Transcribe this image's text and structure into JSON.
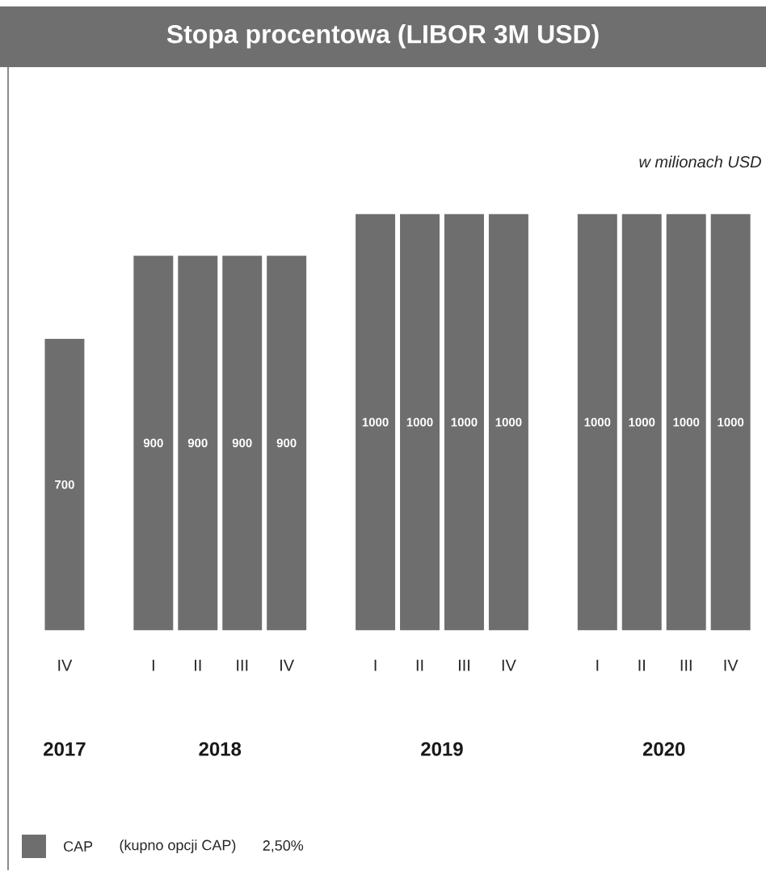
{
  "chart_data": {
    "type": "bar",
    "title": "Stopa procentowa (LIBOR 3M USD)",
    "subtitle": "w milionach USD",
    "categories": [
      "IV",
      null,
      "I",
      "II",
      "III",
      "IV",
      null,
      "I",
      "II",
      "III",
      "IV",
      null,
      "I",
      "II",
      "III",
      "IV"
    ],
    "series": [
      {
        "name": "CAP",
        "color": "#6e6e6e",
        "values": [
          700,
          null,
          900,
          900,
          900,
          900,
          null,
          1000,
          1000,
          1000,
          1000,
          null,
          1000,
          1000,
          1000,
          1000
        ]
      }
    ],
    "data_labels": true,
    "legend": "bottom left",
    "annotations": [
      "2017",
      "2018",
      "2019",
      "2020",
      "(kupno opcji CAP)",
      "2,50%"
    ]
  }
}
